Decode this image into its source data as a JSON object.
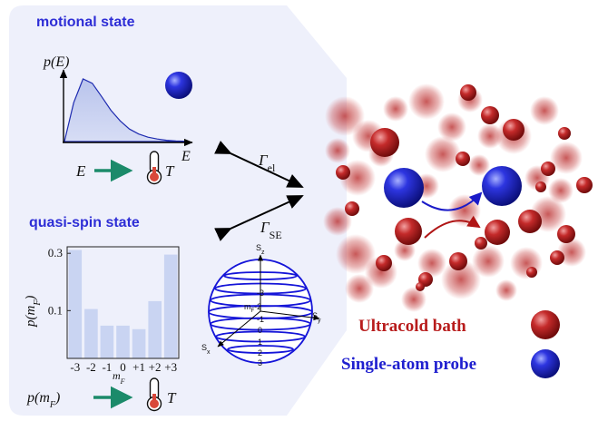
{
  "motional": {
    "title": "motional state",
    "ylabel": "p(E)",
    "xlabel": "E",
    "mapping_from": "E",
    "mapping_to": "T"
  },
  "quasispin": {
    "title": "quasi-spin state",
    "mapping_from": "p(m",
    "mapping_from_sub": "F",
    "mapping_from_close": ")",
    "mapping_to": "T"
  },
  "transitions": {
    "el_symbol": "Γ",
    "el_sub": "el",
    "se_symbol": "Γ",
    "se_sub": "SE"
  },
  "sphere": {
    "axis_z": "S",
    "axis_z_sub": "z",
    "axis_y": "S",
    "axis_y_sub": "y",
    "axis_x": "S",
    "axis_x_sub": "x",
    "labels": [
      "-3",
      "m",
      "-2",
      "-1",
      "0",
      "1",
      "2",
      "3"
    ],
    "mf_sub": "F"
  },
  "legend": {
    "bath_label": "Ultracold bath",
    "probe_label": "Single-atom probe",
    "bath_color": "#b81c1c",
    "probe_color": "#1f1fcf"
  },
  "chart_data": [
    {
      "type": "area",
      "title": "",
      "xlabel": "E",
      "ylabel": "p(E)",
      "series": [
        {
          "values": [
            0,
            0.62,
            1.0,
            0.93,
            0.72,
            0.5,
            0.33,
            0.2,
            0.12,
            0.07,
            0.04,
            0.02,
            0.01,
            0.005
          ]
        }
      ],
      "grid": false
    },
    {
      "type": "bar",
      "title": "",
      "xlabel": "m_F",
      "ylabel": "p(m_F)",
      "categories": [
        "-3",
        "-2",
        "-1",
        "0",
        "+1",
        "+2",
        "+3"
      ],
      "values": [
        0.32,
        0.103,
        0.075,
        0.075,
        0.07,
        0.12,
        0.293
      ],
      "yscale": "log",
      "ylim": [
        0.04,
        0.34
      ],
      "yticks": [
        "0.3",
        "0.1"
      ],
      "color": "#c9d4f2",
      "grid": false
    }
  ]
}
